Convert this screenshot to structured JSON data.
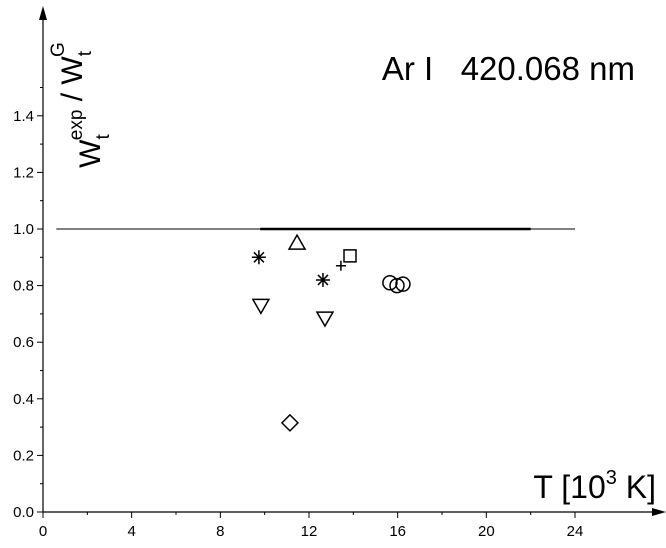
{
  "chart_data": {
    "type": "scatter",
    "title": "Ar I   420.068 nm",
    "ylabel": [
      {
        "text": "W",
        "sub": "t",
        "sup": "exp"
      },
      {
        "text": " / "
      },
      {
        "text": "W",
        "sub": "t",
        "sup": "G"
      }
    ],
    "xlabel": {
      "before": "T [10",
      "sup": "3",
      "after": " K]"
    },
    "color": "#000000",
    "xlim": [
      0,
      28
    ],
    "ylim": [
      0,
      1.78
    ],
    "xticks": [
      0,
      4,
      8,
      12,
      16,
      20,
      24
    ],
    "xminorticks": [
      2,
      6,
      10,
      14,
      18,
      22
    ],
    "yticks": [
      {
        "value": 0,
        "label": "0.0"
      },
      0.2,
      0.4,
      0.6,
      0.8,
      {
        "value": 1,
        "label": "1.0"
      },
      1.2,
      1.4
    ],
    "yminorticks": [
      0.1,
      0.3,
      0.5,
      0.7,
      0.9,
      1.1,
      1.3,
      1.5
    ],
    "hlines": [
      {
        "y": 1,
        "x": [
          0.6,
          24
        ],
        "width": 1
      },
      {
        "y": 1,
        "x": [
          9.8,
          22
        ],
        "width": 2.5
      }
    ],
    "series": [
      {
        "marker": "asterisk",
        "x": [
          9.74,
          12.63
        ],
        "values": [
          0.9,
          0.82
        ]
      },
      {
        "marker": "triangle-up",
        "x": [
          11.46
        ],
        "values": [
          0.95
        ]
      },
      {
        "marker": "square",
        "x": [
          13.85
        ],
        "values": [
          0.905
        ]
      },
      {
        "marker": "plus",
        "x": [
          13.44
        ],
        "values": [
          0.87
        ]
      },
      {
        "marker": "circle",
        "x": [
          15.65,
          15.97,
          16.24
        ],
        "values": [
          0.81,
          0.8,
          0.805
        ]
      },
      {
        "marker": "triangle-down",
        "x": [
          9.83,
          12.72
        ],
        "values": [
          0.73,
          0.685
        ]
      },
      {
        "marker": "diamond",
        "x": [
          11.14
        ],
        "values": [
          0.315
        ]
      }
    ]
  }
}
